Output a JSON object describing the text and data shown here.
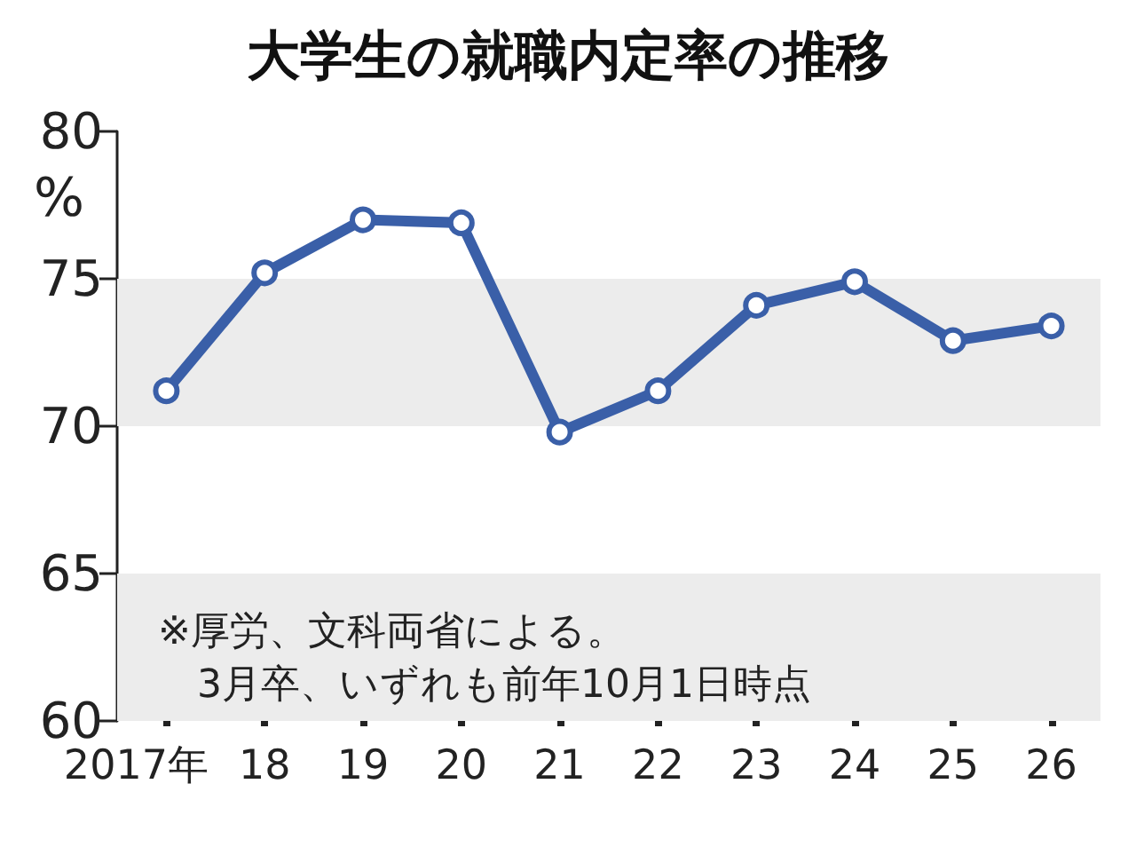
{
  "chart_data": {
    "type": "line",
    "title": "大学生の就職内定率の推移",
    "ylabel": "%",
    "categories": [
      "2017年",
      "18",
      "19",
      "20",
      "21",
      "22",
      "23",
      "24",
      "25",
      "26"
    ],
    "series": [
      {
        "color": "#3a5fa8",
        "values": [
          71.2,
          75.2,
          77.0,
          76.9,
          69.8,
          71.2,
          74.1,
          74.9,
          72.9,
          73.4
        ]
      }
    ],
    "ylim": [
      60,
      80
    ],
    "yticks": [
      60,
      65,
      70,
      75,
      80
    ],
    "bands": [
      {
        "axis": "y",
        "from": 60,
        "to": 65,
        "color": "#ececec"
      },
      {
        "axis": "y",
        "from": 70,
        "to": 75,
        "color": "#ececec"
      }
    ],
    "annotations": [
      "※厚労、文科両省による。\n　3月卒、いずれも前年10月1日時点"
    ],
    "marker": "circle",
    "line_style": "solid",
    "grid": false
  }
}
